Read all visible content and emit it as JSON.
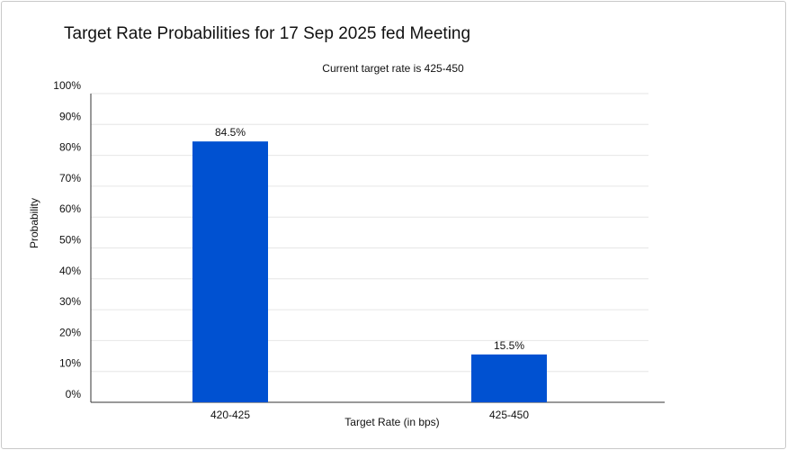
{
  "chart_data": {
    "type": "bar",
    "title": "Target Rate Probabilities for 17 Sep 2025 fed Meeting",
    "subtitle": "Current target rate is 425-450",
    "xlabel": "Target Rate (in bps)",
    "ylabel": "Probability",
    "categories": [
      "420-425",
      "425-450"
    ],
    "values": [
      84.5,
      15.5
    ],
    "data_labels": [
      "84.5%",
      "15.5%"
    ],
    "yticks": [
      "0%",
      "10%",
      "20%",
      "30%",
      "40%",
      "50%",
      "60%",
      "70%",
      "80%",
      "90%",
      "100%"
    ],
    "ylim": [
      0,
      100
    ],
    "grid": true,
    "bar_color": "#0051d1"
  }
}
